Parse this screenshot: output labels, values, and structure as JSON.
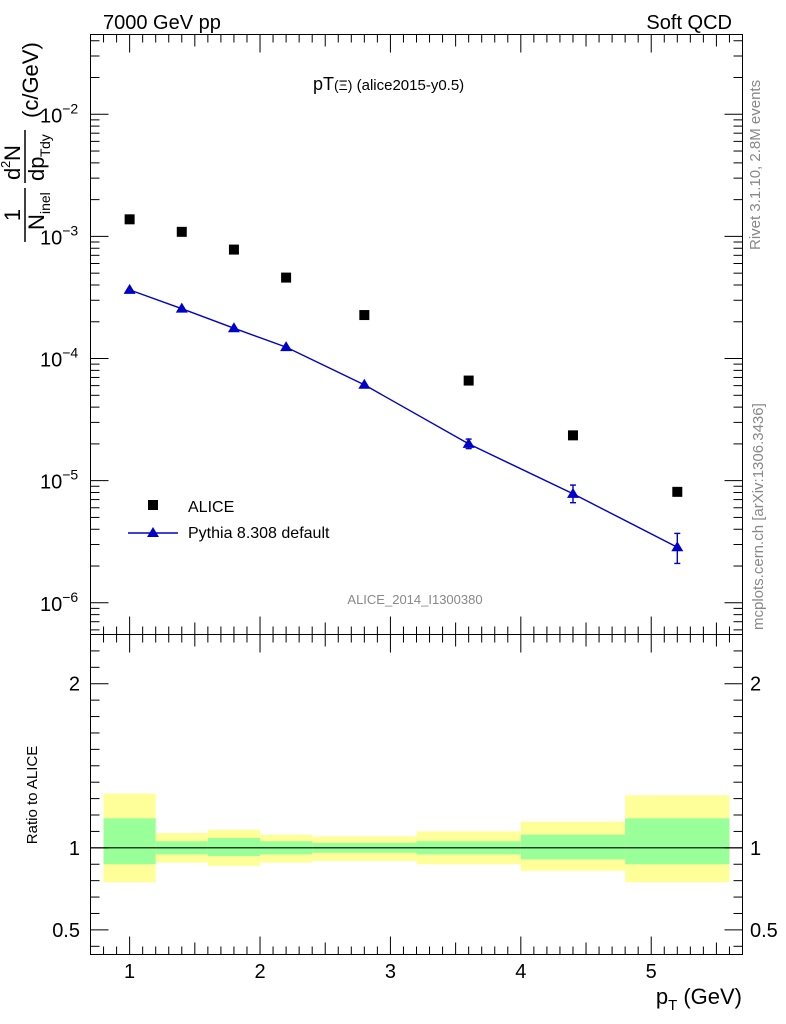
{
  "header": {
    "left": "7000 GeV pp",
    "right": "Soft QCD"
  },
  "side_labels": {
    "rivet": "Rivet 3.1.10,  2.8M events",
    "mcplots": "mcplots.cern.ch [arXiv:1306.3436]"
  },
  "chart_data": [
    {
      "type": "scatter",
      "panel": "main",
      "title": "pT(Ξ) (alice2015-y0.5)",
      "title_main": "pT",
      "title_sym": "(Ξ)",
      "title_rest": " (alice2015-y0.5)",
      "ylabel": "1/N_inel d²N/dp_T dy (c/GeV)",
      "ylabel_parts": {
        "one": "1",
        "N": "N",
        "inel": "inel",
        "d": "d",
        "sq": "2",
        "Ntop": "N",
        "dp": "dp",
        "Tdy": "T",
        "dy": "dy",
        "unit": "(c/GeV)"
      },
      "yscale": "log",
      "xlim": [
        0.7,
        5.7
      ],
      "ylim": [
        5.5e-07,
        0.045
      ],
      "ytick_labels": [
        {
          "value": 1e-06,
          "base": "10",
          "exp": "−6"
        },
        {
          "value": 1e-05,
          "base": "10",
          "exp": "−5"
        },
        {
          "value": 0.0001,
          "base": "10",
          "exp": "−4"
        },
        {
          "value": 0.001,
          "base": "10",
          "exp": "−3"
        },
        {
          "value": 0.01,
          "base": "10",
          "exp": "−2"
        }
      ],
      "watermark": "ALICE_2014_I1300380",
      "legend_position": "bottom-left",
      "series": [
        {
          "name": "ALICE",
          "marker": "square",
          "color": "#000000",
          "x": [
            1.0,
            1.4,
            1.8,
            2.2,
            2.8,
            3.6,
            4.4,
            5.2
          ],
          "y": [
            0.00138,
            0.00109,
            0.00078,
            0.00046,
            0.000227,
            6.6e-05,
            2.35e-05,
            8.1e-06
          ]
        },
        {
          "name": "Pythia 8.308 default",
          "marker": "triangle",
          "line": true,
          "color": "#0000cc",
          "x": [
            1.0,
            1.4,
            1.8,
            2.2,
            2.8,
            3.6,
            4.4,
            5.2
          ],
          "y": [
            0.000365,
            0.000256,
            0.000177,
            0.000124,
            6.1e-05,
            2e-05,
            7.8e-06,
            2.85e-06
          ],
          "err_lo": [
            0,
            0,
            0,
            0,
            0,
            1.7e-06,
            1.2e-06,
            7.5e-07
          ],
          "err_hi": [
            0,
            0,
            0,
            0,
            0,
            1.9e-06,
            1.4e-06,
            8.5e-07
          ]
        }
      ]
    },
    {
      "type": "area",
      "panel": "ratio",
      "ylabel": "Ratio to ALICE",
      "xlabel_main": "p",
      "xlabel_sub": "T",
      "xlabel_unit": "(GeV)",
      "xlim": [
        0.7,
        5.7
      ],
      "ylim": [
        0.35,
        2.3
      ],
      "x_ticks": [
        1,
        2,
        3,
        4,
        5
      ],
      "x_tick_labels": [
        "1",
        "2",
        "3",
        "4",
        "5"
      ],
      "y_ticks": [
        0.5,
        1,
        2
      ],
      "y_tick_labels": [
        "0.5",
        "1",
        "2"
      ],
      "reference_line": 1,
      "bands": {
        "bin_edges": [
          0.8,
          1.2,
          1.6,
          2.0,
          2.4,
          3.2,
          4.0,
          4.8,
          5.6
        ],
        "outer_color": "#ffff99",
        "inner_color": "#99ff99",
        "outer_lo": [
          0.79,
          0.91,
          0.89,
          0.91,
          0.92,
          0.9,
          0.86,
          0.79
        ],
        "outer_hi": [
          1.33,
          1.09,
          1.11,
          1.08,
          1.07,
          1.1,
          1.16,
          1.32
        ],
        "inner_lo": [
          0.9,
          0.96,
          0.95,
          0.96,
          0.97,
          0.96,
          0.93,
          0.9
        ],
        "inner_hi": [
          1.18,
          1.04,
          1.06,
          1.04,
          1.03,
          1.04,
          1.08,
          1.18
        ]
      }
    }
  ]
}
